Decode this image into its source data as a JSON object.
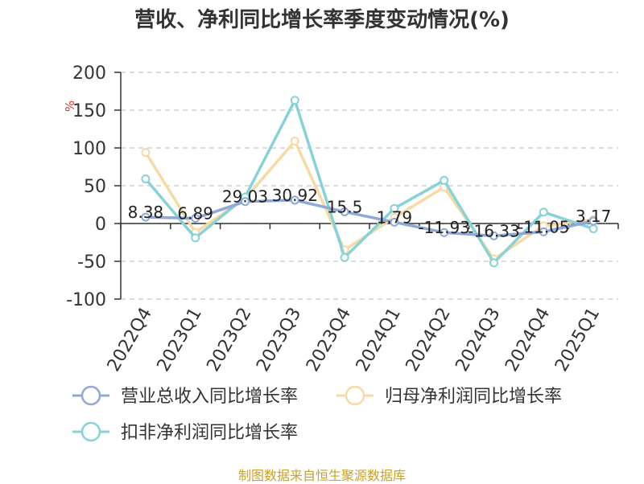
{
  "title": "营收、净利同比增长率季度变动情况(%)",
  "source": "制图数据来自恒生聚源数据库",
  "chart_data": {
    "type": "line",
    "categories": [
      "2022Q4",
      "2023Q1",
      "2023Q2",
      "2023Q3",
      "2023Q4",
      "2024Q1",
      "2024Q2",
      "2024Q3",
      "2024Q4",
      "2025Q1"
    ],
    "ylabel": "%",
    "ylim": [
      -100,
      200
    ],
    "yticks": [
      200,
      150,
      100,
      50,
      0,
      -50,
      -100
    ],
    "grid": true,
    "legend_position": "bottom",
    "series": [
      {
        "name": "营业总收入同比增长率",
        "color": "#8fa8d8",
        "values": [
          8.38,
          6.89,
          29.03,
          30.92,
          15.5,
          1.79,
          -11.93,
          -16.33,
          -11.05,
          3.17
        ],
        "labels": [
          "8.38",
          "6.89",
          "29.03",
          "30.92",
          "15.5",
          "1.79",
          "-11.93",
          "-16.33",
          "-11.05",
          "3.17"
        ]
      },
      {
        "name": "归母净利润同比增长率",
        "color": "#f7d9a3",
        "values": [
          94,
          -12,
          33,
          109,
          -35,
          8,
          48,
          -47,
          -3,
          5
        ]
      },
      {
        "name": "扣非净利润同比增长率",
        "color": "#86d2d8",
        "values": [
          59,
          -19,
          35,
          163,
          -45,
          20,
          57,
          -52,
          15,
          -7
        ]
      }
    ]
  }
}
